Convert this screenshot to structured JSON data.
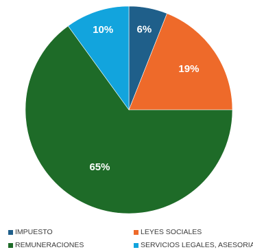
{
  "chart_data": {
    "type": "pie",
    "title": "",
    "categories": [
      "IMPUESTO",
      "LEYES SOCIALES",
      "REMUNERACIONES",
      "SERVICIOS LEGALES, ASESORIAS"
    ],
    "values": [
      6,
      19,
      65,
      10
    ],
    "labels": [
      "6%",
      "19%",
      "65%",
      "10%"
    ],
    "colors": [
      "#1f5f8a",
      "#ee6a2a",
      "#1e6b28",
      "#12a4dd"
    ],
    "legend_position": "bottom"
  }
}
